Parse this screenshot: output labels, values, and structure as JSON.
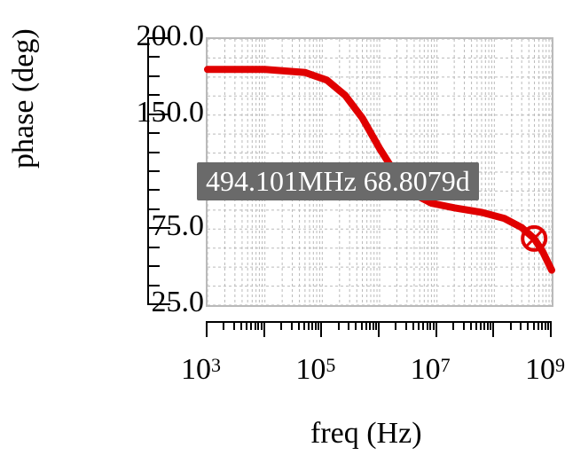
{
  "chart": {
    "type": "line",
    "xlabel": "freq (Hz)",
    "ylabel": "phase (deg)",
    "label_fontsize": 34,
    "background_color": "#ffffff",
    "grid_color": "#bababa",
    "line_color": "#e00000",
    "line_width": 8,
    "callout_bg": "#6a6a6a",
    "callout_fg": "#ffffff",
    "xscale": "log",
    "xlim": [
      1000,
      1000000000
    ],
    "x_major_exp": [
      3,
      5,
      7,
      9
    ],
    "ylim": [
      25,
      200
    ],
    "y_major": [
      25,
      75,
      150,
      200
    ],
    "y_minor_step": 12.5,
    "x_tick_labels": {
      "3": "10",
      "5": "10",
      "7": "10",
      "9": "10"
    },
    "x_tick_label_sup": {
      "3": "3",
      "5": "5",
      "7": "7",
      "9": "9"
    },
    "marker": {
      "freq_hz": 494101000,
      "phase_deg": 68.8079,
      "label": "494.101MHz 68.8079d"
    },
    "series": [
      {
        "x": 1000,
        "y": 180
      },
      {
        "x": 10000,
        "y": 180
      },
      {
        "x": 50000,
        "y": 178
      },
      {
        "x": 120000,
        "y": 173
      },
      {
        "x": 250000,
        "y": 163
      },
      {
        "x": 500000,
        "y": 148
      },
      {
        "x": 1000000,
        "y": 128
      },
      {
        "x": 2000000,
        "y": 110
      },
      {
        "x": 4000000,
        "y": 98
      },
      {
        "x": 8000000,
        "y": 92
      },
      {
        "x": 20000000,
        "y": 89
      },
      {
        "x": 60000000,
        "y": 86
      },
      {
        "x": 150000000,
        "y": 82
      },
      {
        "x": 300000000,
        "y": 76
      },
      {
        "x": 494101000,
        "y": 68.8
      },
      {
        "x": 700000000,
        "y": 60
      },
      {
        "x": 1000000000,
        "y": 48
      }
    ]
  }
}
